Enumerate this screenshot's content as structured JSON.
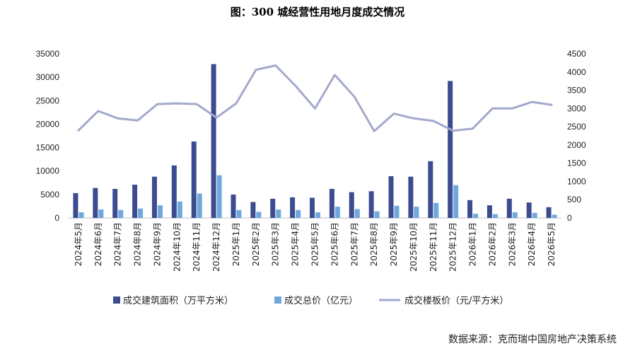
{
  "chart_data": {
    "type": "bar+line",
    "title": "图：300 城经营性用地月度成交情况",
    "source": "数据来源：克而瑞中国房地产决策系统",
    "categories": [
      "2024年5月",
      "2024年6月",
      "2024年7月",
      "2024年8月",
      "2024年9月",
      "2024年10月",
      "2024年11月",
      "2024年12月",
      "2025年1月",
      "2025年2月",
      "2025年3月",
      "2025年4月",
      "2025年5月",
      "2025年6月",
      "2025年7月",
      "2025年8月",
      "2025年9月",
      "2025年10月",
      "2025年11月",
      "2025年12月",
      "2026年1月",
      "2026年2月",
      "2026年3月",
      "2026年4月",
      "2026年5月"
    ],
    "left_axis": {
      "ylim": [
        0,
        35000
      ],
      "ticks": [
        "0",
        "5000",
        "10000",
        "15000",
        "20000",
        "25000",
        "30000",
        "35000"
      ]
    },
    "right_axis": {
      "ylim": [
        0,
        4500
      ],
      "ticks": [
        "0",
        "500",
        "1000",
        "1500",
        "2000",
        "2500",
        "3000",
        "3500",
        "4000",
        "4500"
      ]
    },
    "series": [
      {
        "name": "成交建筑面积（万平方米）",
        "type": "bar",
        "axis": "left",
        "color": "#3c4c8f",
        "values": [
          5300,
          6400,
          6200,
          7100,
          8800,
          11200,
          16300,
          32800,
          5000,
          3400,
          4100,
          4400,
          4300,
          6200,
          5500,
          5700,
          8900,
          8800,
          12100,
          29200,
          3800,
          2700,
          4100,
          3300,
          2300
        ]
      },
      {
        "name": "成交总价（亿元）",
        "type": "bar",
        "axis": "left",
        "color": "#6fa8dc",
        "values": [
          1200,
          1800,
          1700,
          2000,
          2700,
          3500,
          5200,
          9100,
          1700,
          1300,
          1800,
          1700,
          1200,
          2400,
          1900,
          1400,
          2600,
          2400,
          3200,
          7000,
          900,
          800,
          1200,
          1100,
          700
        ]
      },
      {
        "name": "成交楼板价（元/平方米）",
        "type": "line",
        "axis": "right",
        "color": "#a3a9cd",
        "values": [
          2400,
          2930,
          2730,
          2670,
          3120,
          3140,
          3120,
          2750,
          3140,
          4060,
          4180,
          3630,
          3000,
          3920,
          3320,
          2380,
          2860,
          2730,
          2660,
          2390,
          2450,
          3000,
          3000,
          3180,
          3100
        ]
      }
    ],
    "legend_position": "bottom"
  }
}
